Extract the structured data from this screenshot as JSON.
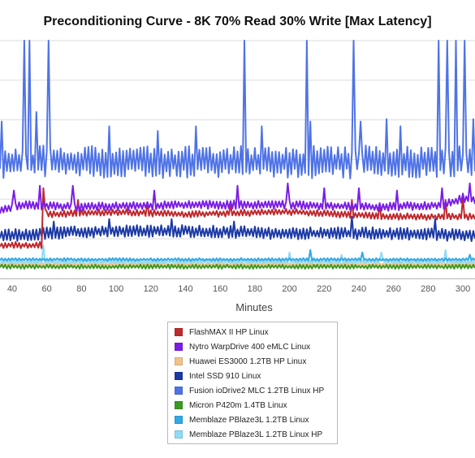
{
  "chart_data": {
    "type": "line",
    "title": "Preconditioning Curve - 8K 70% Read 30% Write [Max Latency]",
    "xlabel": "Minutes",
    "ylabel": "",
    "xlim": [
      33,
      307
    ],
    "ylim": [
      0,
      100
    ],
    "x_ticks": [
      40,
      60,
      80,
      100,
      120,
      140,
      160,
      180,
      200,
      220,
      240,
      260,
      280,
      300
    ],
    "grid": true,
    "legend_position": "bottom-center",
    "series": [
      {
        "name": "FlashMAX II HP Linux",
        "color": "#c0282c",
        "base": [
          [
            33,
            14
          ],
          [
            58,
            14
          ],
          [
            59,
            30
          ],
          [
            60,
            27
          ],
          [
            100,
            28
          ],
          [
            140,
            27
          ],
          [
            200,
            28
          ],
          [
            260,
            26
          ],
          [
            307,
            26
          ]
        ],
        "amp": 1.4,
        "spikes": [
          [
            58,
            38
          ],
          [
            78,
            33
          ],
          [
            118,
            32
          ],
          [
            166,
            31
          ],
          [
            236,
            33
          ],
          [
            252,
            31
          ],
          [
            290,
            33
          ],
          [
            300,
            34
          ]
        ]
      },
      {
        "name": "Nytro WarpDrive 400 eMLC Linux",
        "color": "#7b1ee6",
        "base": [
          [
            33,
            28
          ],
          [
            40,
            30
          ],
          [
            50,
            31
          ],
          [
            80,
            30
          ],
          [
            140,
            31
          ],
          [
            200,
            31
          ],
          [
            250,
            30
          ],
          [
            290,
            31
          ],
          [
            300,
            34
          ],
          [
            307,
            33
          ]
        ],
        "amp": 1.8,
        "spikes": [
          [
            41,
            37
          ],
          [
            56,
            39
          ],
          [
            75,
            39
          ],
          [
            122,
            37
          ],
          [
            170,
            39
          ],
          [
            199,
            40
          ],
          [
            220,
            38
          ],
          [
            240,
            38
          ],
          [
            262,
            37
          ],
          [
            288,
            38
          ],
          [
            304,
            40
          ]
        ]
      },
      {
        "name": "Huawei ES3000 1.2TB HP Linux",
        "color": "#f1c38b",
        "base": [
          [
            33,
            6
          ],
          [
            307,
            6
          ]
        ],
        "amp": 0.5,
        "spikes": []
      },
      {
        "name": "Intel SSD 910 Linux",
        "color": "#1c3aa6",
        "base": [
          [
            33,
            18
          ],
          [
            60,
            19
          ],
          [
            100,
            20
          ],
          [
            140,
            20
          ],
          [
            200,
            19
          ],
          [
            260,
            19
          ],
          [
            307,
            18
          ]
        ],
        "amp": 2.6,
        "spikes": [
          [
            64,
            24
          ],
          [
            96,
            25
          ],
          [
            132,
            25
          ],
          [
            168,
            24
          ],
          [
            236,
            26
          ],
          [
            284,
            25
          ]
        ]
      },
      {
        "name": "Fusion ioDrive2 MLC 1.2TB Linux HP",
        "color": "#4f73e6",
        "base": [
          [
            33,
            49
          ],
          [
            307,
            49
          ]
        ],
        "amp": 7,
        "spikes": [
          [
            34,
            66
          ],
          [
            47,
            100
          ],
          [
            50,
            100
          ],
          [
            54,
            70
          ],
          [
            61,
            100
          ],
          [
            96,
            64
          ],
          [
            124,
            62
          ],
          [
            146,
            64
          ],
          [
            174,
            100
          ],
          [
            184,
            64
          ],
          [
            212,
            66
          ],
          [
            210,
            100
          ],
          [
            237,
            100
          ],
          [
            241,
            66
          ],
          [
            256,
            67
          ],
          [
            264,
            64
          ],
          [
            286,
            100
          ],
          [
            291,
            100
          ],
          [
            296,
            100
          ],
          [
            301,
            100
          ],
          [
            306,
            67
          ]
        ]
      },
      {
        "name": "Micron P420m 1.4TB Linux",
        "color": "#3a9a22",
        "base": [
          [
            33,
            5
          ],
          [
            307,
            5
          ]
        ],
        "amp": 0.9,
        "spikes": []
      },
      {
        "name": "Memblaze PBlaze3L 1.2TB Linux",
        "color": "#30a9e6",
        "base": [
          [
            33,
            8
          ],
          [
            307,
            8
          ]
        ],
        "amp": 0.6,
        "spikes": [
          [
            212,
            12
          ],
          [
            242,
            11
          ],
          [
            304,
            10
          ]
        ]
      },
      {
        "name": "Memblaze PBlaze3L 1.2TB Linux HP",
        "color": "#8fdaf5",
        "base": [
          [
            33,
            7
          ],
          [
            307,
            7
          ]
        ],
        "amp": 0.6,
        "spikes": [
          [
            58,
            14
          ],
          [
            200,
            11
          ],
          [
            230,
            10
          ],
          [
            253,
            11
          ],
          [
            290,
            12
          ]
        ]
      }
    ]
  }
}
